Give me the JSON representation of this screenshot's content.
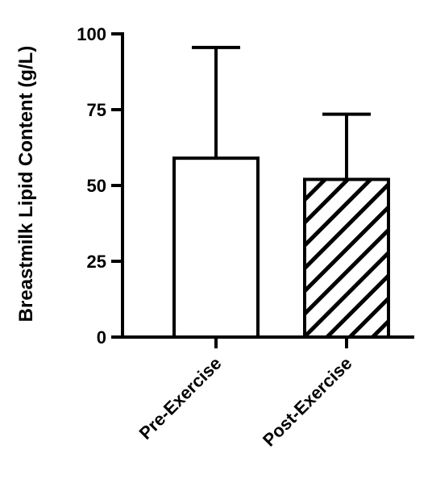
{
  "chart_data": {
    "type": "bar",
    "ylabel": "Breastmilk Lipid Content (g/L)",
    "xlabel": "",
    "ylim": [
      0,
      100
    ],
    "yticks": [
      0,
      25,
      50,
      75,
      100
    ],
    "grid": false,
    "categories": [
      "Pre-Exercise",
      "Post-Exercise"
    ],
    "values": [
      59,
      52
    ],
    "error_upper": [
      36.5,
      21.5
    ],
    "bar_fills": [
      "open",
      "diagonal-hatch"
    ]
  }
}
